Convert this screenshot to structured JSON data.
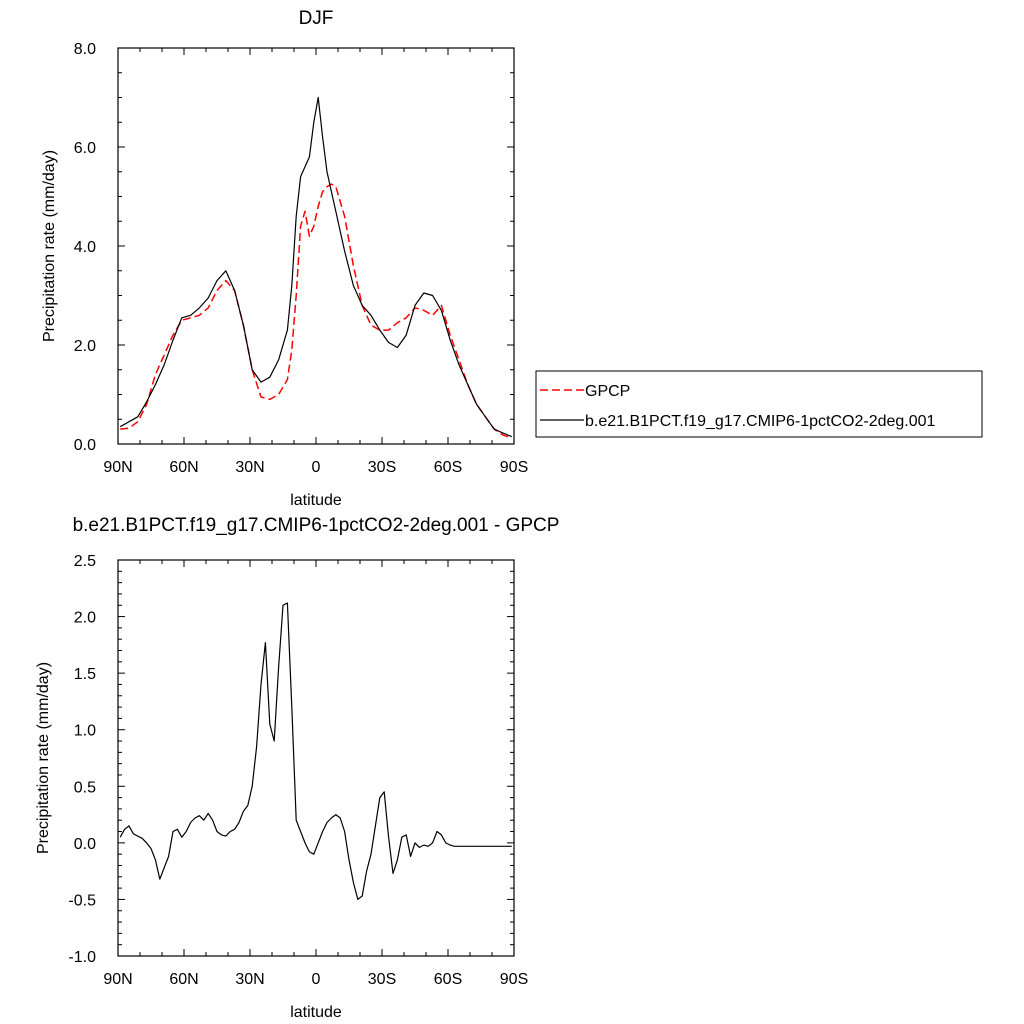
{
  "colors": {
    "gpcp": "#ff0000",
    "model": "#000000",
    "axis": "#000000"
  },
  "chart_data": [
    {
      "type": "line",
      "title": "DJF",
      "xlabel": "latitude",
      "ylabel": "Precipitation rate (mm/day)",
      "xlim": [
        90,
        -90
      ],
      "ylim": [
        0,
        8
      ],
      "xticks": [
        90,
        60,
        30,
        0,
        -30,
        -60,
        -90
      ],
      "xtick_labels": [
        "90N",
        "60N",
        "30N",
        "0",
        "30S",
        "60S",
        "90S"
      ],
      "yticks": [
        0,
        2,
        4,
        6,
        8
      ],
      "ytick_labels": [
        "0.0",
        "2.0",
        "4.0",
        "6.0",
        "8.0"
      ],
      "legend_position": "right",
      "series": [
        {
          "name": "GPCP",
          "style": "dashed",
          "color": "#ff0000",
          "x": [
            89,
            85,
            81,
            77,
            73,
            69,
            65,
            61,
            57,
            53,
            49,
            45,
            41,
            37,
            33,
            29,
            25,
            21,
            17,
            13,
            11,
            9,
            7,
            5,
            3,
            1,
            -1,
            -3,
            -5,
            -7,
            -9,
            -13,
            -17,
            -21,
            -25,
            -29,
            -33,
            -37,
            -41,
            -45,
            -49,
            -53,
            -57,
            -61,
            -65,
            -69,
            -73,
            -77,
            -81,
            -85,
            -89
          ],
          "y": [
            0.3,
            0.32,
            0.45,
            0.8,
            1.4,
            1.8,
            2.2,
            2.5,
            2.55,
            2.6,
            2.75,
            3.1,
            3.3,
            3.1,
            2.4,
            1.5,
            0.95,
            0.9,
            1.0,
            1.3,
            1.9,
            3.0,
            4.4,
            4.7,
            4.2,
            4.4,
            4.8,
            5.1,
            5.2,
            5.25,
            5.2,
            4.6,
            3.6,
            2.8,
            2.4,
            2.3,
            2.3,
            2.45,
            2.55,
            2.75,
            2.7,
            2.6,
            2.8,
            2.2,
            1.7,
            1.2,
            0.8,
            0.55,
            0.3,
            0.18,
            0.12
          ]
        },
        {
          "name": "b.e21.B1PCT.f19_g17.CMIP6-1pctCO2-2deg.001",
          "style": "solid",
          "color": "#000000",
          "x": [
            89,
            85,
            81,
            77,
            73,
            69,
            65,
            61,
            57,
            53,
            49,
            45,
            41,
            37,
            33,
            29,
            25,
            21,
            17,
            13,
            11,
            9,
            7,
            5,
            3,
            1,
            -1,
            -3,
            -5,
            -7,
            -9,
            -13,
            -17,
            -21,
            -25,
            -29,
            -33,
            -37,
            -41,
            -45,
            -49,
            -53,
            -57,
            -61,
            -65,
            -69,
            -73,
            -77,
            -81,
            -85,
            -89
          ],
          "y": [
            0.35,
            0.45,
            0.55,
            0.85,
            1.2,
            1.6,
            2.1,
            2.55,
            2.6,
            2.75,
            2.95,
            3.3,
            3.5,
            3.1,
            2.4,
            1.5,
            1.25,
            1.35,
            1.7,
            2.3,
            3.2,
            4.6,
            5.4,
            5.6,
            5.8,
            6.5,
            7.0,
            6.2,
            5.5,
            5.1,
            4.7,
            3.9,
            3.2,
            2.8,
            2.6,
            2.3,
            2.05,
            1.95,
            2.2,
            2.8,
            3.05,
            3.0,
            2.7,
            2.1,
            1.6,
            1.2,
            0.8,
            0.55,
            0.3,
            0.22,
            0.15
          ]
        }
      ]
    },
    {
      "type": "line",
      "title": "b.e21.B1PCT.f19_g17.CMIP6-1pctCO2-2deg.001 - GPCP",
      "xlabel": "latitude",
      "ylabel": "Precipitation rate (mm/day)",
      "xlim": [
        90,
        -90
      ],
      "ylim": [
        -1,
        2.5
      ],
      "xticks": [
        90,
        60,
        30,
        0,
        -30,
        -60,
        -90
      ],
      "xtick_labels": [
        "90N",
        "60N",
        "30N",
        "0",
        "30S",
        "60S",
        "90S"
      ],
      "yticks": [
        -1,
        -0.5,
        0,
        0.5,
        1,
        1.5,
        2,
        2.5
      ],
      "ytick_labels": [
        "-1.0",
        "-0.5",
        "0.0",
        "0.5",
        "1.0",
        "1.5",
        "2.0",
        "2.5"
      ],
      "series": [
        {
          "style": "solid",
          "color": "#000000",
          "x": [
            89,
            87,
            85,
            83,
            81,
            79,
            77,
            75,
            73,
            71,
            69,
            67,
            65,
            63,
            61,
            59,
            57,
            55,
            53,
            51,
            49,
            47,
            45,
            43,
            41,
            39,
            37,
            35,
            33,
            31,
            29,
            27,
            25,
            23,
            21,
            19,
            17,
            15,
            13,
            11,
            9,
            7,
            5,
            3,
            1,
            -1,
            -3,
            -5,
            -7,
            -9,
            -11,
            -13,
            -15,
            -17,
            -19,
            -21,
            -23,
            -25,
            -27,
            -29,
            -31,
            -33,
            -35,
            -37,
            -39,
            -41,
            -43,
            -45,
            -47,
            -49,
            -51,
            -53,
            -55,
            -57,
            -59,
            -61,
            -63,
            -65,
            -67,
            -69,
            -71,
            -73,
            -75,
            -77,
            -79,
            -81,
            -83,
            -85,
            -87,
            -89
          ],
          "y": [
            0.05,
            0.12,
            0.15,
            0.08,
            0.06,
            0.04,
            0.0,
            -0.05,
            -0.15,
            -0.32,
            -0.22,
            -0.12,
            0.1,
            0.12,
            0.05,
            0.1,
            0.18,
            0.22,
            0.24,
            0.2,
            0.26,
            0.2,
            0.1,
            0.07,
            0.06,
            0.1,
            0.12,
            0.18,
            0.28,
            0.33,
            0.5,
            0.85,
            1.4,
            1.77,
            1.05,
            0.9,
            1.55,
            2.1,
            2.12,
            1.2,
            0.2,
            0.1,
            0.0,
            -0.08,
            -0.1,
            0.0,
            0.1,
            0.18,
            0.22,
            0.25,
            0.22,
            0.1,
            -0.15,
            -0.35,
            -0.5,
            -0.47,
            -0.25,
            -0.1,
            0.15,
            0.4,
            0.45,
            0.05,
            -0.27,
            -0.15,
            0.05,
            0.07,
            -0.12,
            0.0,
            -0.04,
            -0.02,
            -0.03,
            0.0,
            0.1,
            0.07,
            0.0,
            -0.02,
            -0.03,
            -0.03,
            -0.03,
            -0.03,
            -0.03,
            -0.03,
            -0.03,
            -0.03,
            -0.03,
            -0.03,
            -0.03,
            -0.03,
            -0.03,
            -0.03
          ]
        }
      ]
    }
  ]
}
